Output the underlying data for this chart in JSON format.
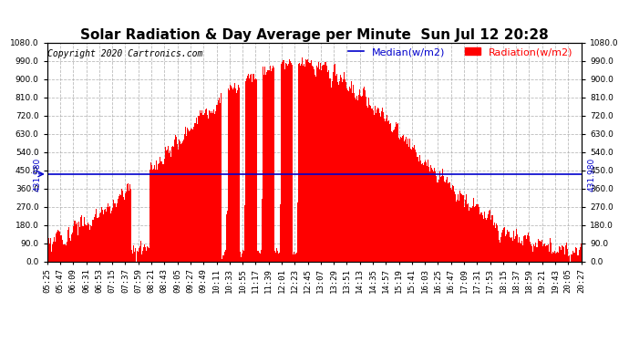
{
  "title": "Solar Radiation & Day Average per Minute  Sun Jul 12 20:28",
  "copyright": "Copyright 2020 Cartronics.com",
  "median_label": "Median(w/m2)",
  "radiation_label": "Radiation(w/m2)",
  "median_value": 431.98,
  "median_label_text": "431.980",
  "ylim": [
    0,
    1080
  ],
  "yticks": [
    0.0,
    90.0,
    180.0,
    270.0,
    360.0,
    450.0,
    540.0,
    630.0,
    720.0,
    810.0,
    900.0,
    990.0,
    1080.0
  ],
  "bar_color": "#ff0000",
  "median_color": "#0000cc",
  "grid_color": "#aaaaaa",
  "bg_color": "#ffffff",
  "title_fontsize": 11,
  "copyright_fontsize": 7,
  "legend_fontsize": 8,
  "tick_fontsize": 6.5,
  "x_tick_labels": [
    "05:25",
    "05:47",
    "06:09",
    "06:31",
    "06:53",
    "07:15",
    "07:37",
    "07:59",
    "08:21",
    "08:43",
    "09:05",
    "09:27",
    "09:49",
    "10:11",
    "10:33",
    "10:55",
    "11:17",
    "11:39",
    "12:01",
    "12:23",
    "12:45",
    "13:07",
    "13:29",
    "13:51",
    "14:13",
    "14:35",
    "14:57",
    "15:19",
    "15:41",
    "16:03",
    "16:25",
    "16:47",
    "17:09",
    "17:31",
    "17:53",
    "18:15",
    "18:37",
    "18:59",
    "19:21",
    "19:43",
    "20:05",
    "20:27"
  ]
}
